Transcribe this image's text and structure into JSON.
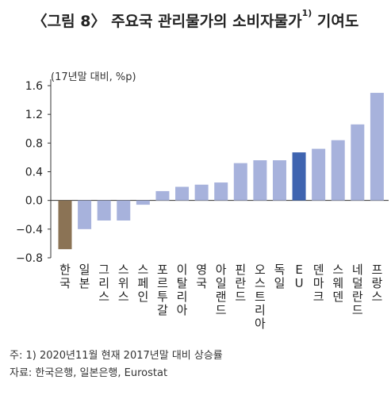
{
  "title_main": "〈그림 8〉 주요국 관리물가의 소비자물가",
  "title_sup": "1)",
  "title_tail": " 기여도",
  "unit_label": "(17년말 대비, %p)",
  "notes": {
    "note1": "주: 1) 2020년11월 현재 2017년말 대비 상승률",
    "note2": "자료: 한국은행, 일본은행, Eurostat"
  },
  "colors": {
    "korea": "#8b7355",
    "eu": "#3f64b0",
    "default": "#a7b2dc",
    "axis": "#333333",
    "grid": "#d0d0d0"
  },
  "chart_data": {
    "type": "bar",
    "categories": [
      "한국",
      "일본",
      "그리스",
      "스위스",
      "스페인",
      "포르투갈",
      "이탈리아",
      "영국",
      "아일랜드",
      "핀란드",
      "오스트리아",
      "독일",
      "EU",
      "덴마크",
      "스웨덴",
      "네덜란드",
      "프랑스"
    ],
    "values": [
      -0.68,
      -0.4,
      -0.28,
      -0.28,
      -0.06,
      0.13,
      0.19,
      0.22,
      0.25,
      0.52,
      0.56,
      0.56,
      0.67,
      0.72,
      0.84,
      1.06,
      1.5
    ],
    "highlight": {
      "한국": "korea",
      "EU": "eu"
    },
    "ylim": [
      -0.8,
      1.6
    ],
    "yticks": [
      "−0.8",
      "−0.4",
      "0.0",
      "0.4",
      "0.8",
      "1.2",
      "1.6"
    ],
    "ytick_values": [
      -0.8,
      -0.4,
      0.0,
      0.4,
      0.8,
      1.2,
      1.6
    ],
    "grid": false,
    "xlabel": "",
    "ylabel": ""
  }
}
